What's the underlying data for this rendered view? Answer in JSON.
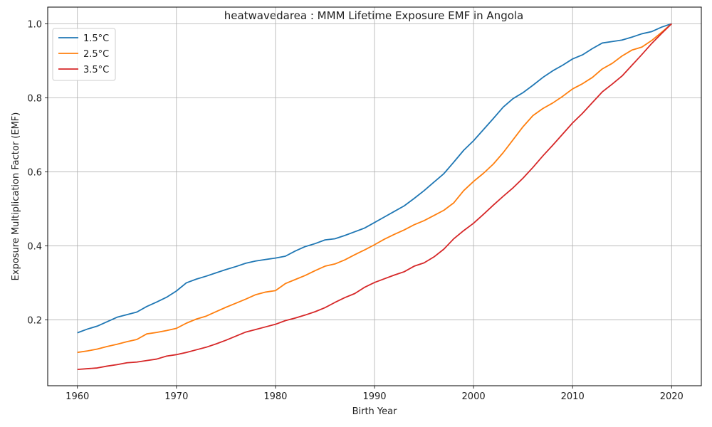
{
  "chart_data": {
    "type": "line",
    "title": "heatwavedarea : MMM Lifetime Exposure EMF in Angola",
    "xlabel": "Birth Year",
    "ylabel": "Exposure Multiplication Factor (EMF)",
    "xlim": [
      1957,
      2023
    ],
    "ylim": [
      0.022,
      1.045
    ],
    "xticks": [
      1960,
      1970,
      1980,
      1990,
      2000,
      2010,
      2020
    ],
    "yticks": [
      0.2,
      0.4,
      0.6,
      0.8,
      1.0
    ],
    "xtick_labels": [
      "1960",
      "1970",
      "1980",
      "1990",
      "2000",
      "2010",
      "2020"
    ],
    "ytick_labels": [
      "0.2",
      "0.4",
      "0.6",
      "0.8",
      "1.0"
    ],
    "grid": true,
    "legend_position": "top-left",
    "x": [
      1960,
      1961,
      1962,
      1963,
      1964,
      1965,
      1966,
      1967,
      1968,
      1969,
      1970,
      1971,
      1972,
      1973,
      1974,
      1975,
      1976,
      1977,
      1978,
      1979,
      1980,
      1981,
      1982,
      1983,
      1984,
      1985,
      1986,
      1987,
      1988,
      1989,
      1990,
      1991,
      1992,
      1993,
      1994,
      1995,
      1996,
      1997,
      1998,
      1999,
      2000,
      2001,
      2002,
      2003,
      2004,
      2005,
      2006,
      2007,
      2008,
      2009,
      2010,
      2011,
      2012,
      2013,
      2014,
      2015,
      2016,
      2017,
      2018,
      2019,
      2020
    ],
    "series": [
      {
        "name": "1.5°C",
        "color": "#1f77b4",
        "values": [
          0.165,
          0.175,
          0.183,
          0.195,
          0.207,
          0.214,
          0.221,
          0.236,
          0.248,
          0.261,
          0.278,
          0.3,
          0.31,
          0.318,
          0.327,
          0.336,
          0.344,
          0.353,
          0.359,
          0.363,
          0.367,
          0.372,
          0.386,
          0.398,
          0.406,
          0.416,
          0.419,
          0.428,
          0.438,
          0.448,
          0.463,
          0.478,
          0.493,
          0.508,
          0.528,
          0.549,
          0.572,
          0.595,
          0.626,
          0.658,
          0.684,
          0.714,
          0.744,
          0.775,
          0.798,
          0.814,
          0.834,
          0.855,
          0.873,
          0.888,
          0.905,
          0.916,
          0.933,
          0.948,
          0.952,
          0.956,
          0.964,
          0.973,
          0.979,
          0.991,
          1.0
        ]
      },
      {
        "name": "2.5°C",
        "color": "#ff7f0e",
        "values": [
          0.112,
          0.116,
          0.121,
          0.128,
          0.134,
          0.141,
          0.147,
          0.162,
          0.166,
          0.171,
          0.177,
          0.191,
          0.202,
          0.21,
          0.222,
          0.234,
          0.245,
          0.256,
          0.268,
          0.275,
          0.279,
          0.298,
          0.309,
          0.32,
          0.333,
          0.345,
          0.351,
          0.362,
          0.376,
          0.389,
          0.403,
          0.418,
          0.431,
          0.443,
          0.457,
          0.468,
          0.482,
          0.496,
          0.516,
          0.549,
          0.574,
          0.596,
          0.621,
          0.652,
          0.687,
          0.722,
          0.752,
          0.771,
          0.786,
          0.804,
          0.824,
          0.838,
          0.855,
          0.878,
          0.893,
          0.913,
          0.929,
          0.937,
          0.955,
          0.977,
          1.0
        ]
      },
      {
        "name": "3.5°C",
        "color": "#d62728",
        "values": [
          0.066,
          0.068,
          0.07,
          0.075,
          0.079,
          0.084,
          0.086,
          0.09,
          0.094,
          0.102,
          0.106,
          0.112,
          0.119,
          0.126,
          0.135,
          0.145,
          0.156,
          0.167,
          0.174,
          0.181,
          0.188,
          0.198,
          0.205,
          0.213,
          0.222,
          0.233,
          0.247,
          0.26,
          0.271,
          0.288,
          0.301,
          0.311,
          0.321,
          0.33,
          0.345,
          0.354,
          0.37,
          0.391,
          0.419,
          0.441,
          0.461,
          0.485,
          0.51,
          0.534,
          0.557,
          0.583,
          0.612,
          0.643,
          0.672,
          0.702,
          0.732,
          0.758,
          0.787,
          0.816,
          0.837,
          0.859,
          0.888,
          0.917,
          0.947,
          0.974,
          1.0
        ]
      }
    ]
  }
}
